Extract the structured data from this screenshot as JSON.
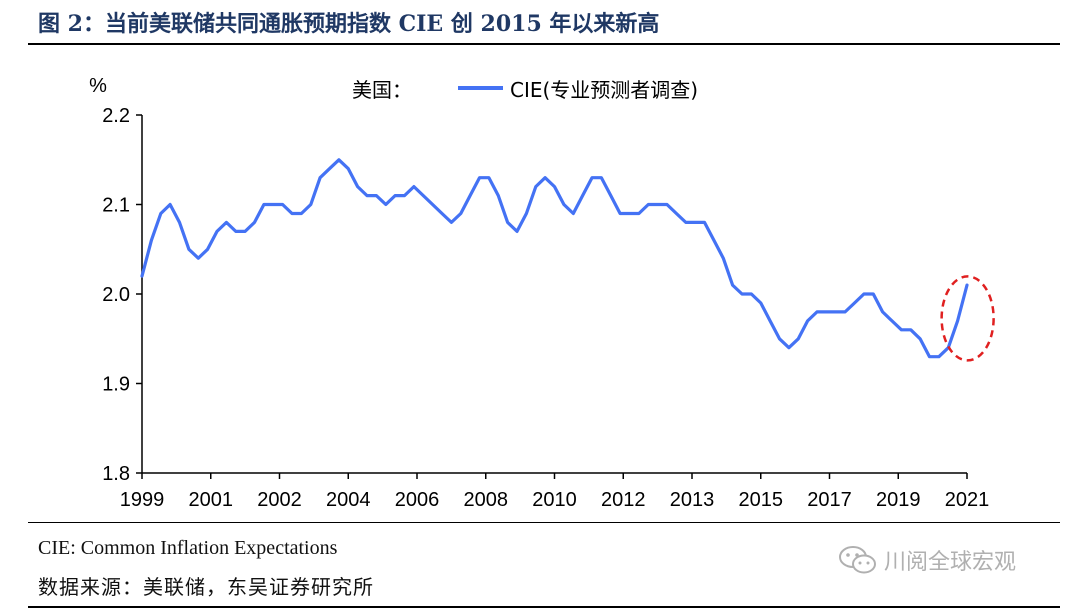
{
  "header": {
    "title": "图 2：当前美联储共同通胀预期指数 CIE 创 2015 年以来新高"
  },
  "footer": {
    "note": "CIE: Common Inflation Expectations",
    "source": "数据来源：美联储，东吴证券研究所",
    "watermark": "川阅全球宏观"
  },
  "chart_data": {
    "type": "line",
    "unit_label": "%",
    "legend_prefix": "美国：",
    "series": [
      {
        "name": "CIE(专业预测者调查)",
        "color": "#4472f4",
        "x": [
          1999.0,
          1999.25,
          1999.5,
          1999.75,
          2000.0,
          2000.25,
          2000.5,
          2000.75,
          2001.0,
          2001.25,
          2001.5,
          2001.75,
          2002.0,
          2002.25,
          2002.5,
          2002.75,
          2003.0,
          2003.25,
          2003.5,
          2003.75,
          2004.0,
          2004.25,
          2004.5,
          2004.75,
          2005.0,
          2005.25,
          2005.5,
          2005.75,
          2006.0,
          2006.25,
          2006.5,
          2006.75,
          2007.0,
          2007.25,
          2007.5,
          2007.75,
          2008.0,
          2008.25,
          2008.5,
          2008.75,
          2009.0,
          2009.25,
          2009.5,
          2009.75,
          2010.0,
          2010.25,
          2010.5,
          2010.75,
          2011.0,
          2011.25,
          2011.5,
          2011.75,
          2012.0,
          2012.25,
          2012.5,
          2012.75,
          2013.0,
          2013.25,
          2013.5,
          2013.75,
          2014.0,
          2014.25,
          2014.5,
          2014.75,
          2015.0,
          2015.25,
          2015.5,
          2015.75,
          2016.0,
          2016.25,
          2016.5,
          2016.75,
          2017.0,
          2017.25,
          2017.5,
          2017.75,
          2018.0,
          2018.25,
          2018.5,
          2018.75,
          2019.0,
          2019.25,
          2019.5,
          2019.75,
          2020.0,
          2020.25,
          2020.5,
          2020.75,
          2021.0
        ],
        "values": [
          2.02,
          2.06,
          2.09,
          2.1,
          2.08,
          2.05,
          2.04,
          2.05,
          2.07,
          2.08,
          2.07,
          2.07,
          2.08,
          2.1,
          2.1,
          2.1,
          2.09,
          2.09,
          2.1,
          2.13,
          2.14,
          2.15,
          2.14,
          2.12,
          2.11,
          2.11,
          2.1,
          2.11,
          2.11,
          2.12,
          2.11,
          2.1,
          2.09,
          2.08,
          2.09,
          2.11,
          2.13,
          2.13,
          2.11,
          2.08,
          2.07,
          2.09,
          2.12,
          2.13,
          2.12,
          2.1,
          2.09,
          2.11,
          2.13,
          2.13,
          2.11,
          2.09,
          2.09,
          2.09,
          2.1,
          2.1,
          2.1,
          2.09,
          2.08,
          2.08,
          2.08,
          2.06,
          2.04,
          2.01,
          2.0,
          2.0,
          1.99,
          1.97,
          1.95,
          1.94,
          1.95,
          1.97,
          1.98,
          1.98,
          1.98,
          1.98,
          1.99,
          2.0,
          2.0,
          1.98,
          1.97,
          1.96,
          1.96,
          1.95,
          1.93,
          1.93,
          1.94,
          1.97,
          2.01
        ]
      }
    ],
    "ylim": [
      1.8,
      2.2
    ],
    "yticks": [
      "1.8",
      "1.9",
      "2.0",
      "2.1",
      "2.2"
    ],
    "xlim": [
      1999,
      2021
    ],
    "xticks": [
      "1999",
      "2001",
      "2002",
      "2004",
      "2006",
      "2008",
      "2010",
      "2012",
      "2013",
      "2015",
      "2017",
      "2019",
      "2021"
    ],
    "annotation": {
      "type": "dashed-ellipse",
      "color": "#e02020",
      "around": "latest 2021 uptick"
    },
    "grid": false,
    "legend_position": "top-center"
  }
}
